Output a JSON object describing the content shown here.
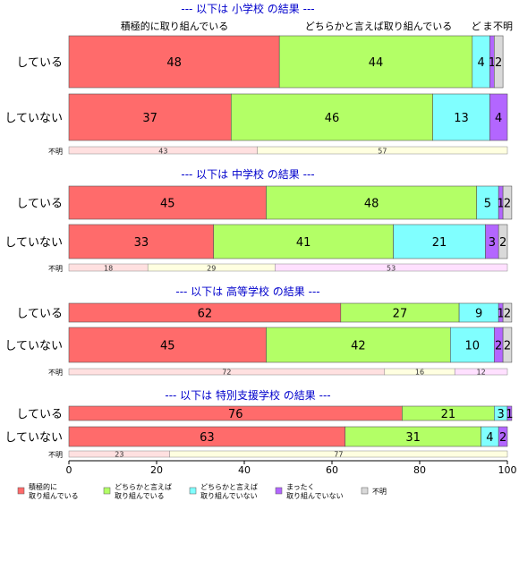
{
  "chart_data": {
    "type": "bar",
    "orientation": "horizontal",
    "stacked": true,
    "xlim": [
      0,
      100
    ],
    "x_ticks": [
      0,
      20,
      40,
      60,
      80,
      100
    ],
    "grid": false,
    "legend_position": "bottom",
    "legend": [
      {
        "label_lines": [
          "積極的に",
          "取り組んでいる"
        ],
        "color": "#FF6B6B"
      },
      {
        "label_lines": [
          "どちらかと言えば",
          "取り組んでいる"
        ],
        "color": "#B3FF66"
      },
      {
        "label_lines": [
          "どちらかと言えば",
          "取り組んでいない"
        ],
        "color": "#80FFFF"
      },
      {
        "label_lines": [
          "まったく",
          "取り組んでいない"
        ],
        "color": "#B366FF"
      },
      {
        "label_lines": [
          "不明"
        ],
        "color": "#D9D9D9"
      }
    ],
    "top_category_labels": [
      "積極的に取り組んでいる",
      "どちらかと言えば取り組んでいる",
      "ど",
      "ま",
      "不明"
    ],
    "panels": [
      {
        "title": "--- 以下は 小学校 の結果 ---",
        "rows": [
          {
            "label": "している",
            "values": [
              48,
              44,
              4,
              1,
              2
            ]
          },
          {
            "label": "していない",
            "values": [
              37,
              46,
              13,
              4,
              0
            ]
          }
        ],
        "unknown": {
          "label": "不明",
          "values": [
            43,
            57,
            0
          ]
        }
      },
      {
        "title": "--- 以下は 中学校 の結果 ---",
        "rows": [
          {
            "label": "している",
            "values": [
              45,
              48,
              5,
              1,
              2
            ]
          },
          {
            "label": "していない",
            "values": [
              33,
              41,
              21,
              3,
              2
            ]
          }
        ],
        "unknown": {
          "label": "不明",
          "values": [
            18,
            29,
            53
          ]
        }
      },
      {
        "title": "--- 以下は 高等学校 の結果 ---",
        "rows": [
          {
            "label": "している",
            "values": [
              62,
              27,
              9,
              1,
              2
            ]
          },
          {
            "label": "していない",
            "values": [
              45,
              42,
              10,
              2,
              2
            ]
          }
        ],
        "unknown": {
          "label": "不明",
          "values": [
            72,
            16,
            12
          ]
        }
      },
      {
        "title": "--- 以下は 特別支援学校 の結果 ---",
        "rows": [
          {
            "label": "している",
            "values": [
              76,
              21,
              3,
              1,
              0
            ]
          },
          {
            "label": "していない",
            "values": [
              63,
              31,
              4,
              2,
              0
            ]
          }
        ],
        "unknown": {
          "label": "不明",
          "values": [
            23,
            77,
            0
          ]
        }
      }
    ]
  }
}
